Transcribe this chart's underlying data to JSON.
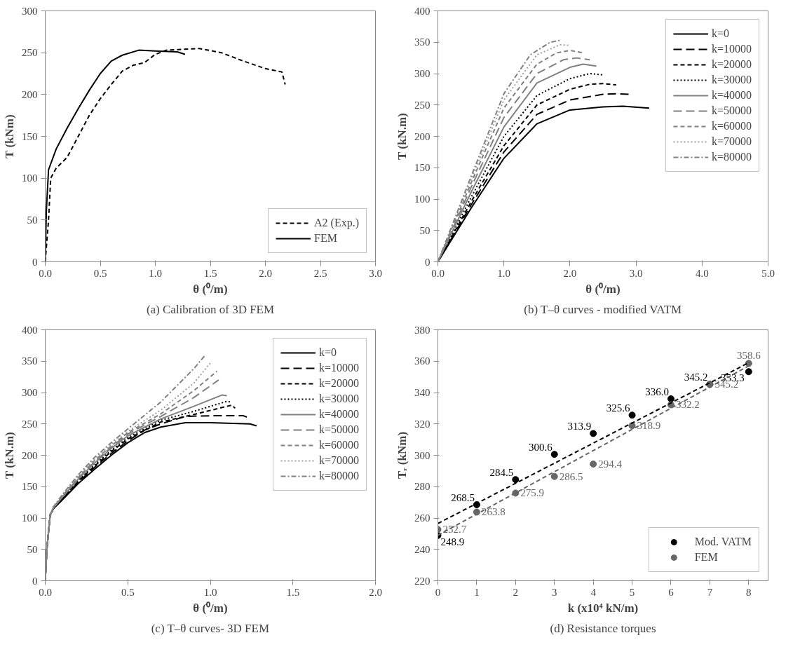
{
  "chart_data": [
    {
      "type": "line",
      "title": "(a) Calibration of 3D FEM",
      "xlabel": "θ (⁰/m)",
      "ylabel": "T (kNm)",
      "xlim": [
        0,
        3
      ],
      "ylim": [
        0,
        300
      ],
      "xticks": [
        {
          "value": 0,
          "label": "0.0"
        },
        {
          "value": 0.5,
          "label": "0.5"
        },
        {
          "value": 1,
          "label": "1.0"
        },
        {
          "value": 1.5,
          "label": "1.5"
        },
        {
          "value": 2,
          "label": "2.0"
        },
        {
          "value": 2.5,
          "label": "2.5"
        },
        {
          "value": 3,
          "label": "3.0"
        }
      ],
      "yticks": [
        0,
        50,
        100,
        150,
        200,
        250,
        300
      ],
      "grid": false,
      "legend": "bottom right",
      "series": [
        {
          "name": "A2 (Exp.)",
          "color": "#000000",
          "line_style": "dashed",
          "x": [
            0,
            0.03,
            0.05,
            0.1,
            0.2,
            0.3,
            0.4,
            0.5,
            0.6,
            0.7,
            0.8,
            0.9,
            1.0,
            1.1,
            1.25,
            1.4,
            1.6,
            1.8,
            2.0,
            2.15,
            2.18
          ],
          "values": [
            0,
            50,
            100,
            112,
            125,
            150,
            175,
            195,
            212,
            228,
            235,
            238,
            248,
            253,
            254,
            255,
            250,
            240,
            231,
            227,
            212
          ]
        },
        {
          "name": "FEM",
          "color": "#000000",
          "line_style": "solid",
          "x": [
            0,
            0.01,
            0.03,
            0.1,
            0.2,
            0.3,
            0.4,
            0.5,
            0.6,
            0.7,
            0.85,
            1.0,
            1.2,
            1.27
          ],
          "values": [
            0,
            60,
            110,
            135,
            160,
            183,
            205,
            225,
            240,
            247,
            253,
            252,
            251,
            248
          ]
        }
      ]
    },
    {
      "type": "line",
      "title": "(b) T–θ curves - modified VATM",
      "xlabel": "θ (⁰/m)",
      "ylabel": "T (kN.m)",
      "xlim": [
        0,
        5
      ],
      "ylim": [
        0,
        400
      ],
      "xticks": [
        {
          "value": 0,
          "label": "0.0"
        },
        {
          "value": 1,
          "label": "1.0"
        },
        {
          "value": 2,
          "label": "2.0"
        },
        {
          "value": 3,
          "label": "3.0"
        },
        {
          "value": 4,
          "label": "4.0"
        },
        {
          "value": 5,
          "label": "5.0"
        }
      ],
      "yticks": [
        0,
        50,
        100,
        150,
        200,
        250,
        300,
        350,
        400
      ],
      "grid": false,
      "legend": "top right",
      "series": [
        {
          "name": "k=0",
          "color": "#000000",
          "line_style": "solid",
          "x": [
            0,
            0.5,
            1.0,
            1.5,
            2.0,
            2.5,
            2.8,
            3.2
          ],
          "values": [
            0,
            85,
            165,
            220,
            242,
            247,
            248,
            245
          ]
        },
        {
          "name": "k=10000",
          "color": "#000000",
          "line_style": "long dashed",
          "x": [
            0,
            0.5,
            1.0,
            1.5,
            2.0,
            2.5,
            2.7,
            2.9
          ],
          "values": [
            0,
            90,
            175,
            235,
            258,
            267,
            268,
            267
          ]
        },
        {
          "name": "k=20000",
          "color": "#000000",
          "line_style": "dashed",
          "x": [
            0,
            0.5,
            1.0,
            1.5,
            2.0,
            2.3,
            2.5,
            2.7
          ],
          "values": [
            0,
            95,
            185,
            250,
            275,
            283,
            284,
            282
          ]
        },
        {
          "name": "k=30000",
          "color": "#000000",
          "line_style": "dotted",
          "x": [
            0,
            0.5,
            1.0,
            1.5,
            2.0,
            2.3,
            2.5
          ],
          "values": [
            0,
            102,
            200,
            265,
            292,
            300,
            298
          ]
        },
        {
          "name": "k=40000",
          "color": "#808080",
          "line_style": "solid",
          "x": [
            0,
            0.5,
            1.0,
            1.5,
            2.0,
            2.2,
            2.4
          ],
          "values": [
            0,
            110,
            215,
            285,
            310,
            315,
            312
          ]
        },
        {
          "name": "k=50000",
          "color": "#808080",
          "line_style": "long dashed",
          "x": [
            0,
            0.5,
            1.0,
            1.5,
            1.9,
            2.1,
            2.3
          ],
          "values": [
            0,
            118,
            230,
            300,
            322,
            325,
            322
          ]
        },
        {
          "name": "k=60000",
          "color": "#808080",
          "line_style": "dashed",
          "x": [
            0,
            0.5,
            1.0,
            1.5,
            1.8,
            2.0,
            2.2
          ],
          "values": [
            0,
            125,
            245,
            315,
            333,
            337,
            333
          ]
        },
        {
          "name": "k=70000",
          "color": "#a0a0a0",
          "line_style": "dotted",
          "x": [
            0,
            0.5,
            1.0,
            1.5,
            1.85,
            2.0
          ],
          "values": [
            0,
            130,
            258,
            330,
            346,
            345
          ]
        },
        {
          "name": "k=80000",
          "color": "#808080",
          "line_style": "dashdot",
          "x": [
            0,
            0.5,
            1.0,
            1.4,
            1.7,
            1.85
          ],
          "values": [
            0,
            135,
            268,
            330,
            350,
            353
          ]
        }
      ]
    },
    {
      "type": "line",
      "title": "(c) T–θ curves- 3D FEM",
      "xlabel": "θ (⁰/m)",
      "ylabel": "T (kN.m)",
      "xlim": [
        0,
        2
      ],
      "ylim": [
        0,
        400
      ],
      "xticks": [
        {
          "value": 0,
          "label": "0.0"
        },
        {
          "value": 0.5,
          "label": "0.5"
        },
        {
          "value": 1,
          "label": "1.0"
        },
        {
          "value": 1.5,
          "label": "1.5"
        },
        {
          "value": 2,
          "label": "2.0"
        }
      ],
      "yticks": [
        0,
        50,
        100,
        150,
        200,
        250,
        300,
        350,
        400
      ],
      "grid": false,
      "legend": "top right",
      "series": [
        {
          "name": "k=0",
          "color": "#000000",
          "line_style": "solid",
          "x": [
            0,
            0.01,
            0.03,
            0.05,
            0.1,
            0.2,
            0.3,
            0.4,
            0.5,
            0.6,
            0.7,
            0.85,
            1.0,
            1.24,
            1.28
          ],
          "values": [
            0,
            50,
            105,
            115,
            128,
            155,
            178,
            200,
            220,
            236,
            245,
            252,
            252,
            250,
            247
          ]
        },
        {
          "name": "k=10000",
          "color": "#000000",
          "line_style": "long dashed",
          "x": [
            0,
            0.01,
            0.03,
            0.05,
            0.1,
            0.2,
            0.3,
            0.4,
            0.5,
            0.6,
            0.7,
            0.85,
            1.0,
            1.2,
            1.23
          ],
          "values": [
            0,
            50,
            105,
            115,
            129,
            157,
            181,
            203,
            223,
            240,
            250,
            262,
            263,
            263,
            260
          ]
        },
        {
          "name": "k=20000",
          "color": "#000000",
          "line_style": "dashed",
          "x": [
            0,
            0.01,
            0.03,
            0.05,
            0.1,
            0.2,
            0.3,
            0.4,
            0.5,
            0.7,
            0.9,
            1.1,
            1.13,
            1.15
          ],
          "values": [
            0,
            50,
            105,
            115,
            130,
            159,
            183,
            206,
            226,
            253,
            265,
            278,
            280,
            275
          ]
        },
        {
          "name": "k=30000",
          "color": "#000000",
          "line_style": "dotted",
          "x": [
            0,
            0.01,
            0.03,
            0.05,
            0.1,
            0.2,
            0.3,
            0.4,
            0.5,
            0.7,
            0.9,
            1.1,
            1.12
          ],
          "values": [
            0,
            50,
            105,
            115,
            131,
            160,
            185,
            208,
            228,
            256,
            270,
            286,
            285
          ]
        },
        {
          "name": "k=40000",
          "color": "#808080",
          "line_style": "solid",
          "x": [
            0,
            0.01,
            0.03,
            0.05,
            0.1,
            0.2,
            0.3,
            0.4,
            0.5,
            0.7,
            0.9,
            1.07,
            1.1
          ],
          "values": [
            0,
            50,
            105,
            116,
            132,
            162,
            188,
            211,
            231,
            258,
            278,
            296,
            295
          ]
        },
        {
          "name": "k=50000",
          "color": "#808080",
          "line_style": "long dashed",
          "x": [
            0,
            0.01,
            0.03,
            0.05,
            0.1,
            0.2,
            0.3,
            0.4,
            0.5,
            0.7,
            0.9,
            1.05
          ],
          "values": [
            0,
            50,
            105,
            116,
            133,
            164,
            190,
            213,
            234,
            262,
            292,
            320
          ]
        },
        {
          "name": "k=60000",
          "color": "#808080",
          "line_style": "dashed",
          "x": [
            0,
            0.01,
            0.03,
            0.05,
            0.1,
            0.2,
            0.3,
            0.4,
            0.5,
            0.7,
            0.9,
            1.04
          ],
          "values": [
            0,
            50,
            105,
            117,
            134,
            165,
            192,
            215,
            236,
            266,
            303,
            334
          ]
        },
        {
          "name": "k=70000",
          "color": "#a0a0a0",
          "line_style": "dotted",
          "x": [
            0,
            0.01,
            0.03,
            0.05,
            0.1,
            0.2,
            0.3,
            0.4,
            0.5,
            0.7,
            0.9,
            1.0
          ],
          "values": [
            0,
            50,
            105,
            117,
            135,
            167,
            194,
            217,
            238,
            272,
            315,
            347
          ]
        },
        {
          "name": "k=80000",
          "color": "#808080",
          "line_style": "dashdot",
          "x": [
            0,
            0.01,
            0.03,
            0.05,
            0.1,
            0.2,
            0.3,
            0.4,
            0.5,
            0.7,
            0.9,
            0.97
          ],
          "values": [
            0,
            50,
            105,
            118,
            136,
            169,
            197,
            220,
            242,
            285,
            338,
            360
          ]
        }
      ]
    },
    {
      "type": "scatter",
      "title": "(d) Resistance torques",
      "xlabel": "k (x10⁴ kN/m)",
      "ylabel": "Tᵣ (kNm)",
      "xlim": [
        0,
        8.5
      ],
      "ylim": [
        220,
        380
      ],
      "xticks": [
        0,
        1,
        2,
        3,
        4,
        5,
        6,
        7,
        8
      ],
      "yticks": [
        220,
        240,
        260,
        280,
        300,
        320,
        340,
        360,
        380
      ],
      "grid": false,
      "legend": "bottom right",
      "x": [
        0,
        1,
        2,
        3,
        4,
        5,
        6,
        7,
        8
      ],
      "series": [
        {
          "name": "Mod. VATM",
          "color": "#000000",
          "marker": "circle",
          "values": [
            248.9,
            268.5,
            284.5,
            300.6,
            313.9,
            325.6,
            336.0,
            345.2,
            353.3
          ],
          "value_labels": [
            "248.9",
            "268.5",
            "284.5",
            "300.6",
            "313.9",
            "325.6",
            "336.0",
            "345.2",
            "353.3"
          ]
        },
        {
          "name": "FEM",
          "color": "#666666",
          "marker": "circle",
          "values": [
            252.7,
            263.8,
            275.9,
            286.5,
            294.4,
            318.9,
            332.2,
            345.2,
            358.6
          ],
          "value_labels": [
            "252.7",
            "263.8",
            "275.9",
            "286.5",
            "294.4",
            "318.9",
            "332.2",
            "345.2",
            "358.6"
          ]
        },
        {
          "type": "line",
          "color": "#000000",
          "line_style": "dashed",
          "x": [
            0,
            8
          ],
          "values": [
            256.5,
            359
          ]
        },
        {
          "type": "line",
          "color": "#666666",
          "line_style": "dashed",
          "x": [
            0,
            8
          ],
          "values": [
            249,
            357
          ]
        }
      ]
    }
  ]
}
